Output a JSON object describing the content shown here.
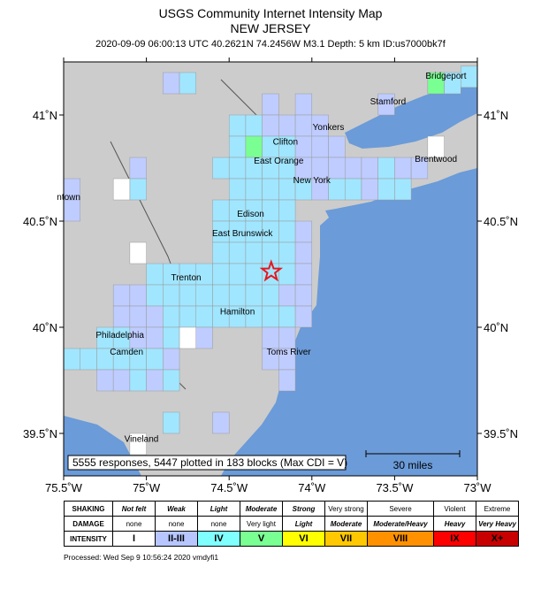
{
  "title": {
    "line1": "USGS Community Internet Intensity Map",
    "line2": "NEW JERSEY",
    "line3": "2020-09-09 06:00:13 UTC 40.2621N 74.2456W M3.1 Depth: 5 km ID:us7000bk7f"
  },
  "map": {
    "bounds": {
      "lon_min": -75.5,
      "lon_max": -73.0,
      "lat_min": 39.3,
      "lat_max": 41.25
    },
    "lon_ticks": [
      "75.5˚W",
      "75˚W",
      "74.5˚W",
      "74˚W",
      "73.5˚W",
      "73˚W"
    ],
    "lat_ticks": [
      "41˚N",
      "40.5˚N",
      "40˚N",
      "39.5˚N"
    ],
    "land_color": "#cccccc",
    "water_color": "#6b9bd8",
    "epicenter": {
      "lon": -74.2456,
      "lat": 40.2621,
      "marker": "star-icon",
      "color": "#e8161d"
    },
    "cities": [
      {
        "name": "Bridgeport",
        "lon": -73.19,
        "lat": 41.17
      },
      {
        "name": "Stamford",
        "lon": -73.54,
        "lat": 41.05
      },
      {
        "name": "Yonkers",
        "lon": -73.9,
        "lat": 40.93
      },
      {
        "name": "Clifton",
        "lon": -74.16,
        "lat": 40.86
      },
      {
        "name": "East Orange",
        "lon": -74.2,
        "lat": 40.77
      },
      {
        "name": "Brentwood",
        "lon": -73.25,
        "lat": 40.78
      },
      {
        "name": "New York",
        "lon": -74.0,
        "lat": 40.68
      },
      {
        "name": "ntown",
        "lon": -75.47,
        "lat": 40.6
      },
      {
        "name": "Edison",
        "lon": -74.37,
        "lat": 40.52
      },
      {
        "name": "East Brunswick",
        "lon": -74.42,
        "lat": 40.43
      },
      {
        "name": "Trenton",
        "lon": -74.76,
        "lat": 40.22
      },
      {
        "name": "Hamilton",
        "lon": -74.45,
        "lat": 40.06
      },
      {
        "name": "Philadelphia",
        "lon": -75.16,
        "lat": 39.95
      },
      {
        "name": "Camden",
        "lon": -75.12,
        "lat": 39.87
      },
      {
        "name": "Toms River",
        "lon": -74.14,
        "lat": 39.87
      },
      {
        "name": "Vineland",
        "lon": -75.03,
        "lat": 39.46
      }
    ],
    "summary": "5555 responses, 5447 plotted in 183 blocks (Max CDI = V)",
    "scale_label": "30 miles",
    "cdi_colors": {
      "I": "#ffffff",
      "II": "#bfccff",
      "III": "#a0e6ff",
      "IV": "#80ffff",
      "V": "#7aff93",
      "VI": "#ffff00",
      "VII": "#ffc800",
      "VIII": "#ff9100",
      "IX": "#ff0000",
      "X": "#c80000"
    },
    "blocks": [
      {
        "lon": -74.85,
        "lat": 41.15,
        "cdi": "II"
      },
      {
        "lon": -74.75,
        "lat": 41.15,
        "cdi": "III"
      },
      {
        "lon": -73.25,
        "lat": 41.15,
        "cdi": "V"
      },
      {
        "lon": -73.15,
        "lat": 41.15,
        "cdi": "III"
      },
      {
        "lon": -73.05,
        "lat": 41.18,
        "cdi": "III"
      },
      {
        "lon": -74.25,
        "lat": 41.05,
        "cdi": "II"
      },
      {
        "lon": -74.05,
        "lat": 41.05,
        "cdi": "II"
      },
      {
        "lon": -73.55,
        "lat": 41.05,
        "cdi": "II"
      },
      {
        "lon": -74.45,
        "lat": 40.95,
        "cdi": "III"
      },
      {
        "lon": -74.35,
        "lat": 40.95,
        "cdi": "III"
      },
      {
        "lon": -74.25,
        "lat": 40.95,
        "cdi": "II"
      },
      {
        "lon": -74.15,
        "lat": 40.95,
        "cdi": "II"
      },
      {
        "lon": -74.05,
        "lat": 40.95,
        "cdi": "II"
      },
      {
        "lon": -73.95,
        "lat": 40.95,
        "cdi": "II"
      },
      {
        "lon": -74.45,
        "lat": 40.85,
        "cdi": "III"
      },
      {
        "lon": -74.35,
        "lat": 40.85,
        "cdi": "V"
      },
      {
        "lon": -74.25,
        "lat": 40.85,
        "cdi": "III"
      },
      {
        "lon": -74.15,
        "lat": 40.85,
        "cdi": "III"
      },
      {
        "lon": -74.05,
        "lat": 40.85,
        "cdi": "II"
      },
      {
        "lon": -73.95,
        "lat": 40.85,
        "cdi": "II"
      },
      {
        "lon": -73.85,
        "lat": 40.85,
        "cdi": "II"
      },
      {
        "lon": -73.25,
        "lat": 40.85,
        "cdi": "I"
      },
      {
        "lon": -74.55,
        "lat": 40.75,
        "cdi": "III"
      },
      {
        "lon": -74.45,
        "lat": 40.75,
        "cdi": "III"
      },
      {
        "lon": -74.35,
        "lat": 40.75,
        "cdi": "III"
      },
      {
        "lon": -74.25,
        "lat": 40.75,
        "cdi": "III"
      },
      {
        "lon": -74.15,
        "lat": 40.75,
        "cdi": "III"
      },
      {
        "lon": -74.05,
        "lat": 40.75,
        "cdi": "II"
      },
      {
        "lon": -73.95,
        "lat": 40.75,
        "cdi": "II"
      },
      {
        "lon": -73.85,
        "lat": 40.75,
        "cdi": "II"
      },
      {
        "lon": -73.75,
        "lat": 40.75,
        "cdi": "II"
      },
      {
        "lon": -73.65,
        "lat": 40.75,
        "cdi": "II"
      },
      {
        "lon": -73.55,
        "lat": 40.75,
        "cdi": "III"
      },
      {
        "lon": -73.45,
        "lat": 40.75,
        "cdi": "II"
      },
      {
        "lon": -73.35,
        "lat": 40.75,
        "cdi": "II"
      },
      {
        "lon": -75.05,
        "lat": 40.75,
        "cdi": "II"
      },
      {
        "lon": -74.45,
        "lat": 40.65,
        "cdi": "III"
      },
      {
        "lon": -74.35,
        "lat": 40.65,
        "cdi": "III"
      },
      {
        "lon": -74.25,
        "lat": 40.65,
        "cdi": "III"
      },
      {
        "lon": -74.15,
        "lat": 40.65,
        "cdi": "III"
      },
      {
        "lon": -74.05,
        "lat": 40.65,
        "cdi": "III"
      },
      {
        "lon": -73.95,
        "lat": 40.65,
        "cdi": "II"
      },
      {
        "lon": -73.85,
        "lat": 40.65,
        "cdi": "III"
      },
      {
        "lon": -73.75,
        "lat": 40.65,
        "cdi": "III"
      },
      {
        "lon": -73.65,
        "lat": 40.65,
        "cdi": "II"
      },
      {
        "lon": -73.55,
        "lat": 40.65,
        "cdi": "III"
      },
      {
        "lon": -73.45,
        "lat": 40.65,
        "cdi": "III"
      },
      {
        "lon": -75.05,
        "lat": 40.65,
        "cdi": "III"
      },
      {
        "lon": -75.15,
        "lat": 40.65,
        "cdi": "I"
      },
      {
        "lon": -75.45,
        "lat": 40.65,
        "cdi": "II"
      },
      {
        "lon": -75.45,
        "lat": 40.55,
        "cdi": "II"
      },
      {
        "lon": -74.55,
        "lat": 40.55,
        "cdi": "III"
      },
      {
        "lon": -74.45,
        "lat": 40.55,
        "cdi": "III"
      },
      {
        "lon": -74.35,
        "lat": 40.55,
        "cdi": "III"
      },
      {
        "lon": -74.25,
        "lat": 40.55,
        "cdi": "III"
      },
      {
        "lon": -74.15,
        "lat": 40.55,
        "cdi": "III"
      },
      {
        "lon": -74.55,
        "lat": 40.45,
        "cdi": "III"
      },
      {
        "lon": -74.45,
        "lat": 40.45,
        "cdi": "III"
      },
      {
        "lon": -74.35,
        "lat": 40.45,
        "cdi": "III"
      },
      {
        "lon": -74.25,
        "lat": 40.45,
        "cdi": "III"
      },
      {
        "lon": -74.15,
        "lat": 40.45,
        "cdi": "III"
      },
      {
        "lon": -74.05,
        "lat": 40.45,
        "cdi": "II"
      },
      {
        "lon": -75.05,
        "lat": 40.35,
        "cdi": "I"
      },
      {
        "lon": -74.55,
        "lat": 40.35,
        "cdi": "III"
      },
      {
        "lon": -74.45,
        "lat": 40.35,
        "cdi": "III"
      },
      {
        "lon": -74.35,
        "lat": 40.35,
        "cdi": "III"
      },
      {
        "lon": -74.25,
        "lat": 40.35,
        "cdi": "III"
      },
      {
        "lon": -74.15,
        "lat": 40.35,
        "cdi": "III"
      },
      {
        "lon": -74.05,
        "lat": 40.35,
        "cdi": "II"
      },
      {
        "lon": -74.95,
        "lat": 40.25,
        "cdi": "III"
      },
      {
        "lon": -74.85,
        "lat": 40.25,
        "cdi": "III"
      },
      {
        "lon": -74.75,
        "lat": 40.25,
        "cdi": "III"
      },
      {
        "lon": -74.65,
        "lat": 40.25,
        "cdi": "III"
      },
      {
        "lon": -74.55,
        "lat": 40.25,
        "cdi": "III"
      },
      {
        "lon": -74.45,
        "lat": 40.25,
        "cdi": "III"
      },
      {
        "lon": -74.35,
        "lat": 40.25,
        "cdi": "III"
      },
      {
        "lon": -74.25,
        "lat": 40.25,
        "cdi": "III"
      },
      {
        "lon": -74.15,
        "lat": 40.25,
        "cdi": "III"
      },
      {
        "lon": -74.05,
        "lat": 40.25,
        "cdi": "II"
      },
      {
        "lon": -75.15,
        "lat": 40.15,
        "cdi": "II"
      },
      {
        "lon": -75.05,
        "lat": 40.15,
        "cdi": "II"
      },
      {
        "lon": -74.95,
        "lat": 40.15,
        "cdi": "III"
      },
      {
        "lon": -74.85,
        "lat": 40.15,
        "cdi": "III"
      },
      {
        "lon": -74.75,
        "lat": 40.15,
        "cdi": "III"
      },
      {
        "lon": -74.65,
        "lat": 40.15,
        "cdi": "III"
      },
      {
        "lon": -74.55,
        "lat": 40.15,
        "cdi": "III"
      },
      {
        "lon": -74.45,
        "lat": 40.15,
        "cdi": "III"
      },
      {
        "lon": -74.35,
        "lat": 40.15,
        "cdi": "III"
      },
      {
        "lon": -74.25,
        "lat": 40.15,
        "cdi": "III"
      },
      {
        "lon": -74.15,
        "lat": 40.15,
        "cdi": "II"
      },
      {
        "lon": -74.05,
        "lat": 40.15,
        "cdi": "II"
      },
      {
        "lon": -75.15,
        "lat": 40.05,
        "cdi": "II"
      },
      {
        "lon": -75.05,
        "lat": 40.05,
        "cdi": "II"
      },
      {
        "lon": -74.95,
        "lat": 40.05,
        "cdi": "II"
      },
      {
        "lon": -74.85,
        "lat": 40.05,
        "cdi": "III"
      },
      {
        "lon": -74.75,
        "lat": 40.05,
        "cdi": "III"
      },
      {
        "lon": -74.65,
        "lat": 40.05,
        "cdi": "III"
      },
      {
        "lon": -74.55,
        "lat": 40.05,
        "cdi": "III"
      },
      {
        "lon": -74.45,
        "lat": 40.05,
        "cdi": "III"
      },
      {
        "lon": -74.35,
        "lat": 40.05,
        "cdi": "III"
      },
      {
        "lon": -74.25,
        "lat": 40.05,
        "cdi": "III"
      },
      {
        "lon": -74.15,
        "lat": 40.05,
        "cdi": "III"
      },
      {
        "lon": -74.05,
        "lat": 40.05,
        "cdi": "II"
      },
      {
        "lon": -75.25,
        "lat": 39.95,
        "cdi": "III"
      },
      {
        "lon": -75.15,
        "lat": 39.95,
        "cdi": "III"
      },
      {
        "lon": -75.05,
        "lat": 39.95,
        "cdi": "II"
      },
      {
        "lon": -74.95,
        "lat": 39.95,
        "cdi": "II"
      },
      {
        "lon": -74.85,
        "lat": 39.95,
        "cdi": "III"
      },
      {
        "lon": -74.75,
        "lat": 39.95,
        "cdi": "I"
      },
      {
        "lon": -74.65,
        "lat": 39.95,
        "cdi": "II"
      },
      {
        "lon": -74.25,
        "lat": 39.95,
        "cdi": "II"
      },
      {
        "lon": -74.15,
        "lat": 39.95,
        "cdi": "II"
      },
      {
        "lon": -75.45,
        "lat": 39.85,
        "cdi": "III"
      },
      {
        "lon": -75.35,
        "lat": 39.85,
        "cdi": "III"
      },
      {
        "lon": -75.25,
        "lat": 39.85,
        "cdi": "III"
      },
      {
        "lon": -75.15,
        "lat": 39.85,
        "cdi": "III"
      },
      {
        "lon": -75.05,
        "lat": 39.85,
        "cdi": "III"
      },
      {
        "lon": -74.95,
        "lat": 39.85,
        "cdi": "III"
      },
      {
        "lon": -74.85,
        "lat": 39.85,
        "cdi": "II"
      },
      {
        "lon": -74.25,
        "lat": 39.85,
        "cdi": "II"
      },
      {
        "lon": -74.15,
        "lat": 39.85,
        "cdi": "II"
      },
      {
        "lon": -75.25,
        "lat": 39.75,
        "cdi": "II"
      },
      {
        "lon": -75.15,
        "lat": 39.75,
        "cdi": "II"
      },
      {
        "lon": -75.05,
        "lat": 39.75,
        "cdi": "III"
      },
      {
        "lon": -74.95,
        "lat": 39.75,
        "cdi": "II"
      },
      {
        "lon": -74.85,
        "lat": 39.75,
        "cdi": "III"
      },
      {
        "lon": -74.15,
        "lat": 39.75,
        "cdi": "II"
      },
      {
        "lon": -74.85,
        "lat": 39.55,
        "cdi": "III"
      },
      {
        "lon": -74.55,
        "lat": 39.55,
        "cdi": "II"
      },
      {
        "lon": -75.05,
        "lat": 39.45,
        "cdi": "I"
      }
    ]
  },
  "legend": {
    "headers": [
      "SHAKING",
      "DAMAGE",
      "INTENSITY"
    ],
    "shaking": [
      "Not felt",
      "Weak",
      "Light",
      "Moderate",
      "Strong",
      "Very strong",
      "Severe",
      "Violent",
      "Extreme"
    ],
    "damage": [
      "none",
      "none",
      "none",
      "Very light",
      "Light",
      "Moderate",
      "Moderate/Heavy",
      "Heavy",
      "Very Heavy"
    ],
    "intensity": [
      "I",
      "II-III",
      "IV",
      "V",
      "VI",
      "VII",
      "VIII",
      "IX",
      "X+"
    ],
    "colors": [
      "#ffffff",
      "#b7c6ff",
      "#80ffff",
      "#7aff93",
      "#ffff00",
      "#ffc800",
      "#ff9100",
      "#ff0000",
      "#c80000"
    ]
  },
  "processed": "Processed: Wed Sep  9 10:56:24 2020 vmdyfi1"
}
